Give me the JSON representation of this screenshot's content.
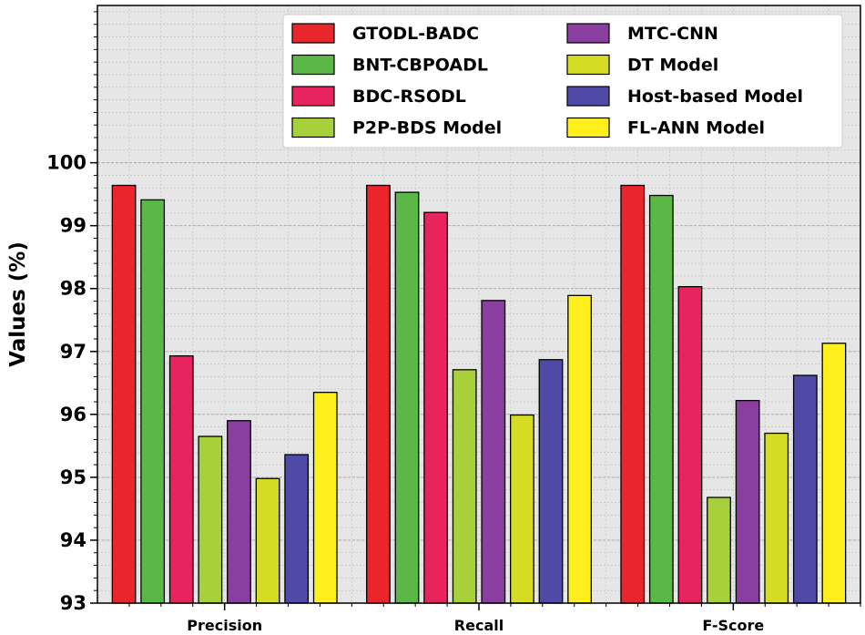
{
  "chart_data": {
    "type": "bar",
    "title": "",
    "xlabel": "",
    "ylabel": "Values (%)",
    "ylim": [
      93,
      100
    ],
    "y_axis_range_max": 102.5,
    "yticks": [
      93,
      94,
      95,
      96,
      97,
      98,
      99,
      100
    ],
    "grid": true,
    "legend_placement": "top-right",
    "legend_columns": 2,
    "categories": [
      "Precision",
      "Recall",
      "F-Score"
    ],
    "series": [
      {
        "name": "GTODL-BADC",
        "color": "#e8262b",
        "values": [
          99.64,
          99.64,
          99.64
        ]
      },
      {
        "name": "BNT-CBPOADL",
        "color": "#5cb846",
        "values": [
          99.41,
          99.53,
          99.48
        ]
      },
      {
        "name": "BDC-RSODL",
        "color": "#e8245f",
        "values": [
          96.93,
          99.21,
          98.03
        ]
      },
      {
        "name": "P2P-BDS Model",
        "color": "#a8d03a",
        "values": [
          95.65,
          96.71,
          94.68
        ]
      },
      {
        "name": "MTC-CNN",
        "color": "#8a3ea0",
        "values": [
          95.9,
          97.81,
          96.22
        ]
      },
      {
        "name": "DT Model",
        "color": "#d6dc24",
        "values": [
          94.98,
          95.99,
          95.7
        ]
      },
      {
        "name": "Host-based Model",
        "color": "#4f4aa6",
        "values": [
          95.36,
          96.87,
          96.62
        ]
      },
      {
        "name": "FL-ANN Model",
        "color": "#ffef1c",
        "values": [
          96.35,
          97.89,
          97.13
        ]
      }
    ]
  }
}
